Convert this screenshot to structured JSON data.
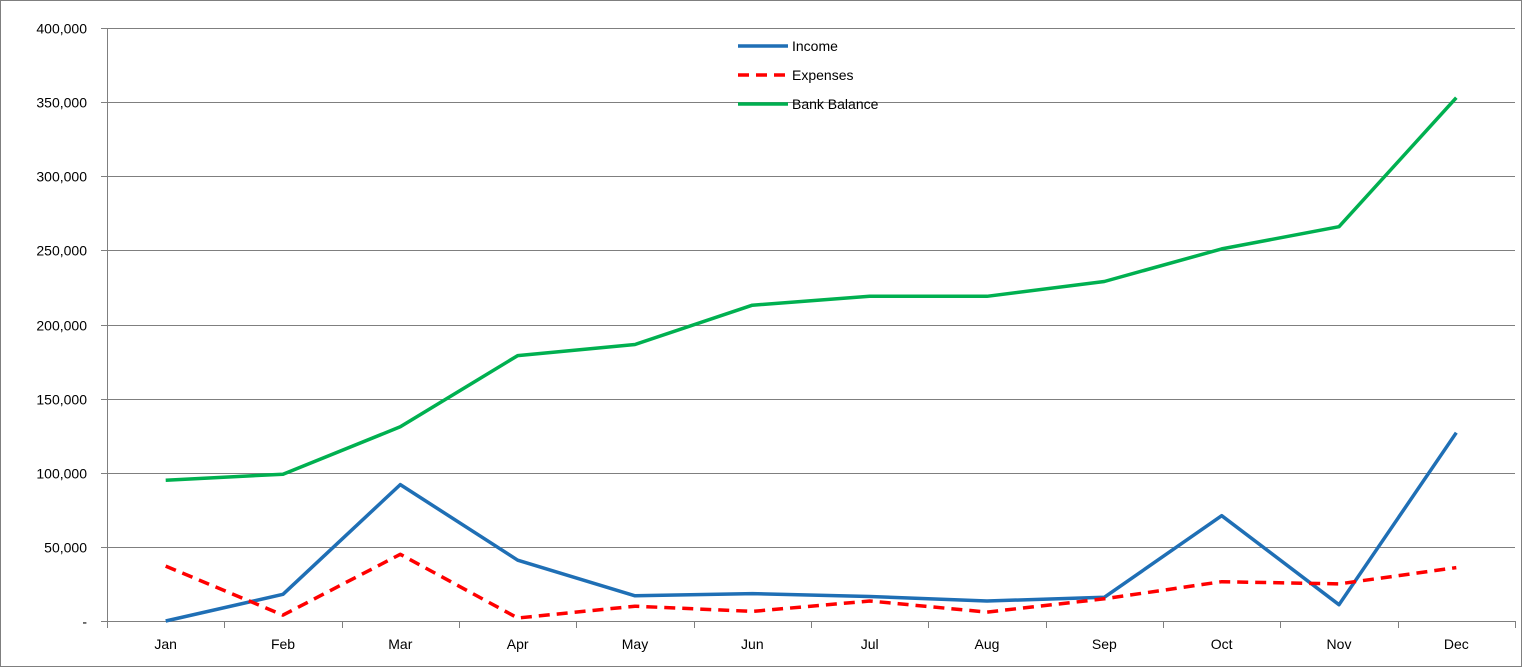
{
  "chart_data": {
    "type": "line",
    "title": "",
    "xlabel": "",
    "ylabel": "",
    "categories": [
      "Jan",
      "Feb",
      "Mar",
      "Apr",
      "May",
      "Jun",
      "Jul",
      "Aug",
      "Sep",
      "Oct",
      "Nov",
      "Dec"
    ],
    "ylim": [
      0,
      400000
    ],
    "yticks": [
      0,
      50000,
      100000,
      150000,
      200000,
      250000,
      300000,
      350000,
      400000
    ],
    "ytick_labels": [
      "-",
      "50,000",
      "100,000",
      "150,000",
      "200,000",
      "250,000",
      "300,000",
      "350,000",
      "400,000"
    ],
    "grid": "horizontal",
    "legend_position": "top-center",
    "series": [
      {
        "name": "Income",
        "color": "#1f6fb5",
        "dashed": false,
        "values": [
          0,
          18000,
          92000,
          41000,
          17000,
          18500,
          16500,
          13500,
          16000,
          71000,
          11000,
          127000
        ]
      },
      {
        "name": "Expenses",
        "color": "#ff0000",
        "dashed": true,
        "values": [
          37000,
          4000,
          45000,
          2000,
          10000,
          6500,
          13500,
          6000,
          15000,
          26500,
          25000,
          36000
        ]
      },
      {
        "name": "Bank Balance",
        "color": "#00b050",
        "dashed": false,
        "values": [
          95000,
          99000,
          131000,
          179000,
          186500,
          213000,
          219000,
          219000,
          229000,
          251000,
          266000,
          353000
        ]
      }
    ]
  }
}
